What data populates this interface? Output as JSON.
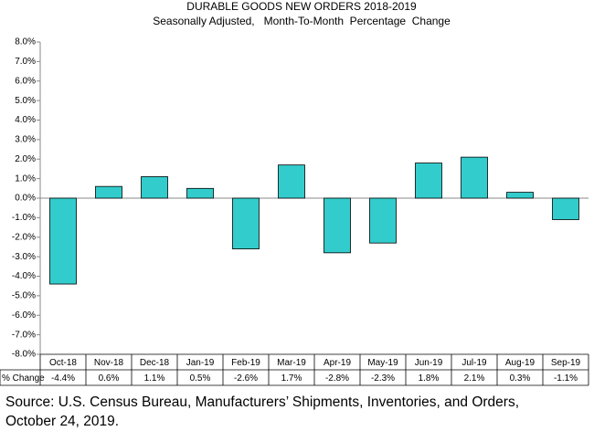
{
  "chart_data": {
    "type": "bar",
    "title": "DURABLE GOODS NEW ORDERS 2018-2019",
    "subtitle": "Seasonally Adjusted,   Month-To-Month  Percentage  Change",
    "categories": [
      "Oct-18",
      "Nov-18",
      "Dec-18",
      "Jan-19",
      "Feb-19",
      "Mar-19",
      "Apr-19",
      "May-19",
      "Jun-19",
      "Jul-19",
      "Aug-19",
      "Sep-19"
    ],
    "series": [
      {
        "name": "% Change",
        "color": "#33cccc",
        "values": [
          -4.4,
          0.6,
          1.1,
          0.5,
          -2.6,
          1.7,
          -2.8,
          -2.3,
          1.8,
          2.1,
          0.3,
          -1.1
        ],
        "value_labels": [
          "-4.4%",
          "0.6%",
          "1.1%",
          "0.5%",
          "-2.6%",
          "1.7%",
          "-2.8%",
          "-2.3%",
          "1.8%",
          "2.1%",
          "0.3%",
          "-1.1%"
        ]
      }
    ],
    "ylim": [
      -8,
      8
    ],
    "yticks": [
      {
        "value": 8,
        "label": "8.0%"
      },
      {
        "value": 7,
        "label": "7.0%"
      },
      {
        "value": 6,
        "label": "6.0%"
      },
      {
        "value": 5,
        "label": "5.0%"
      },
      {
        "value": 4,
        "label": "4.0%"
      },
      {
        "value": 3,
        "label": "3.0%"
      },
      {
        "value": 2,
        "label": "2.0%"
      },
      {
        "value": 1,
        "label": "1.0%"
      },
      {
        "value": 0,
        "label": "0.0%"
      },
      {
        "value": -1,
        "label": "-1.0%"
      },
      {
        "value": -2,
        "label": "-2.0%"
      },
      {
        "value": -3,
        "label": "-3.0%"
      },
      {
        "value": -4,
        "label": "-4.0%"
      },
      {
        "value": -5,
        "label": "-5.0%"
      },
      {
        "value": -6,
        "label": "-6.0%"
      },
      {
        "value": -7,
        "label": "-7.0%"
      },
      {
        "value": -8,
        "label": "-8.0%"
      }
    ],
    "source": "Source: U.S. Census Bureau, Manufacturers’ Shipments, Inventories, and Orders, October 24, 2019."
  }
}
